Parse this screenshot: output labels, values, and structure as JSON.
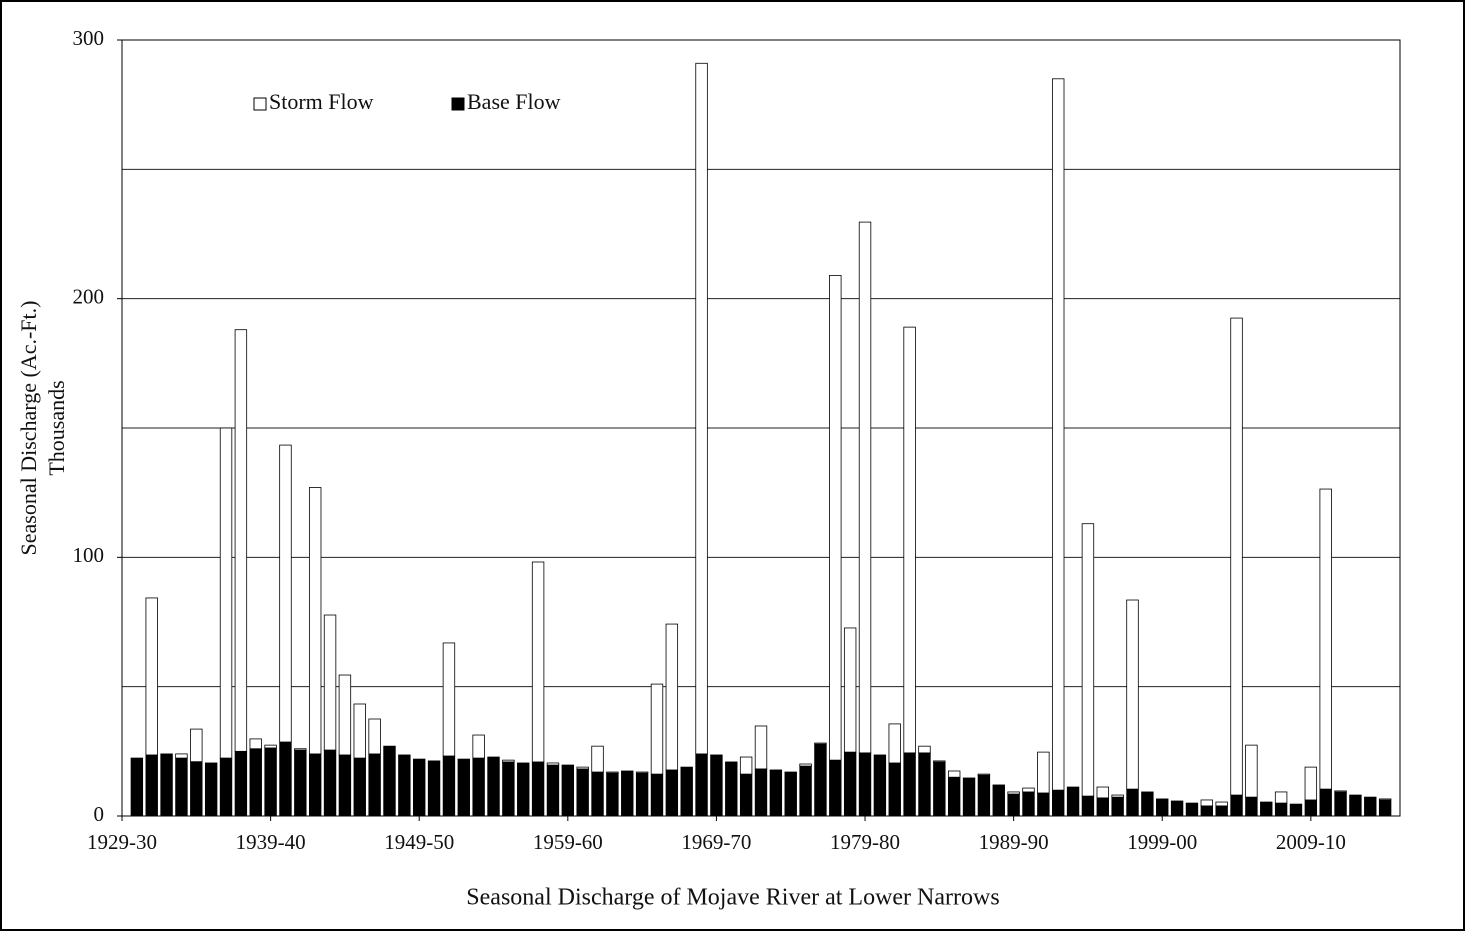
{
  "chart_data": {
    "type": "stacked_bar",
    "x_label": "Seasonal Discharge of Mojave River at Lower Narrows",
    "y_label": "Seasonal Discharge (Ac.-Ft.)",
    "y_unit": "Thousands",
    "categories": [
      "1929-30",
      null,
      null,
      null,
      null,
      null,
      null,
      null,
      null,
      null,
      "1939-40",
      null,
      null,
      null,
      null,
      null,
      null,
      null,
      null,
      null,
      "1949-50",
      null,
      null,
      null,
      null,
      null,
      null,
      null,
      null,
      null,
      "1959-60",
      null,
      null,
      null,
      null,
      null,
      null,
      null,
      null,
      null,
      "1969-70",
      null,
      null,
      null,
      null,
      null,
      null,
      null,
      null,
      null,
      "1979-80",
      null,
      null,
      null,
      null,
      null,
      null,
      null,
      null,
      null,
      "1989-90",
      null,
      null,
      null,
      null,
      null,
      null,
      null,
      null,
      null,
      "1999-00",
      null,
      null,
      null,
      null,
      null,
      null,
      null,
      null,
      null,
      "2009-10",
      null,
      null,
      null,
      null,
      null
    ],
    "series": [
      {
        "name": "Base Flow",
        "color": "#000000",
        "values": [
          null,
          22.4,
          23.6,
          24,
          22.4,
          21,
          20.5,
          22.4,
          25,
          26,
          26.3,
          28.6,
          25.5,
          24,
          25.5,
          23.6,
          22.4,
          24,
          27,
          23.6,
          22,
          21.3,
          23.2,
          22,
          22.4,
          22.8,
          20.9,
          20.5,
          20.9,
          19.7,
          19.7,
          18.2,
          17,
          16.6,
          17.4,
          16.6,
          16.2,
          17.8,
          18.9,
          24,
          23.6,
          20.9,
          16.2,
          18.2,
          17.8,
          17,
          19.3,
          27.8,
          21.6,
          24.7,
          24.4,
          23.6,
          20.5,
          24.4,
          24.4,
          20.9,
          15,
          14.7,
          15.8,
          12,
          8.5,
          9.3,
          8.9,
          10,
          11.2,
          7.7,
          7,
          7.3,
          10.4,
          9.3,
          6.6,
          5.8,
          5,
          3.9,
          3.9,
          8.1,
          7.3,
          5.4,
          5,
          4.6,
          6.2,
          10.4,
          9.3,
          8.1,
          7,
          6.2
        ]
      },
      {
        "name": "Storm Flow",
        "color": "#ffffff",
        "values": [
          null,
          0,
          60.7,
          0,
          1.6,
          12.6,
          0,
          127.6,
          163,
          3.8,
          1.1,
          114.8,
          0.5,
          103,
          52.2,
          30.9,
          20.9,
          13.5,
          0,
          0,
          0,
          0,
          43.7,
          0,
          8.9,
          0,
          0.7,
          0,
          77.3,
          0.8,
          0,
          0.7,
          10,
          0.4,
          0,
          0.4,
          34.8,
          56.4,
          0,
          267,
          0,
          0,
          6.6,
          16.6,
          0,
          0,
          0.8,
          0.4,
          187.4,
          48,
          205.2,
          0,
          15.1,
          164.6,
          2.6,
          0.4,
          2.4,
          0,
          0.4,
          0,
          0.8,
          1.5,
          15.8,
          275,
          0,
          105.3,
          4.2,
          0.8,
          73.1,
          0,
          0,
          0,
          0,
          2.3,
          1.5,
          184.4,
          20.1,
          0,
          4.3,
          0,
          12.7,
          116,
          0.4,
          0,
          0.3,
          0.4
        ]
      }
    ],
    "ylim": [
      0,
      300
    ],
    "yticks": [
      0,
      100,
      200,
      300
    ],
    "grid_lines": [
      50,
      100,
      150,
      200,
      250,
      300
    ],
    "legend": "top-left"
  }
}
